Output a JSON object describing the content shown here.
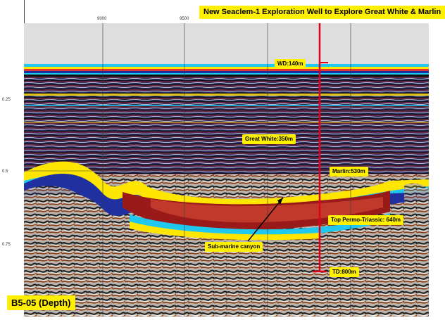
{
  "title": "New Seaclem-1 Exploration Well to Explore Great White & Marlin",
  "section": "B5-05 (Depth)",
  "annotations": {
    "wd": "WD:140m",
    "great_white": "Great White:350m",
    "marlin": "Marlin:530m",
    "top_permo": "Top Permo-Triassic: 640m",
    "canyon": "Sub-marine canyon",
    "td": "TD:800m"
  },
  "axis": {
    "x_ticks": [
      "9000",
      "9500"
    ],
    "y_ticks": [
      "0.25",
      "0.5",
      "0.75"
    ]
  },
  "colors": {
    "label_bg": "#ffef00",
    "well_line": "#e0001b"
  }
}
